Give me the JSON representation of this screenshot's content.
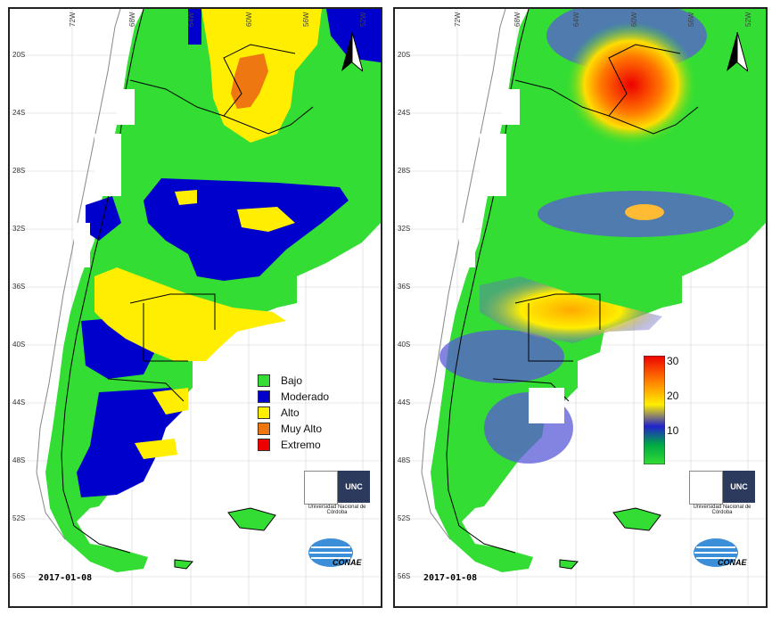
{
  "left_panel": {
    "date": "2017-01-08",
    "legend": [
      {
        "label": "Bajo",
        "color": "#33dd33"
      },
      {
        "label": "Moderado",
        "color": "#0000cc"
      },
      {
        "label": "Alto",
        "color": "#ffee00"
      },
      {
        "label": "Muy Alto",
        "color": "#ee7711"
      },
      {
        "label": "Extremo",
        "color": "#ee0000"
      }
    ]
  },
  "right_panel": {
    "date": "2017-01-08",
    "colorbar": {
      "ticks": [
        "30",
        "20",
        "10"
      ]
    }
  },
  "latitude_labels": [
    "20S",
    "24S",
    "28S",
    "32S",
    "36S",
    "40S",
    "44S",
    "48S",
    "52S",
    "56S"
  ],
  "longitude_labels": [
    "72W",
    "68W",
    "64W",
    "60W",
    "56W",
    "52W"
  ],
  "logos": {
    "unc_text": "UNC",
    "unc_name": "Universidad Nacional de Córdoba",
    "conae_text": "CONAE"
  },
  "colors": {
    "land_green": "#33dd33",
    "outline_gray": "#888888",
    "border_black": "#000000"
  }
}
